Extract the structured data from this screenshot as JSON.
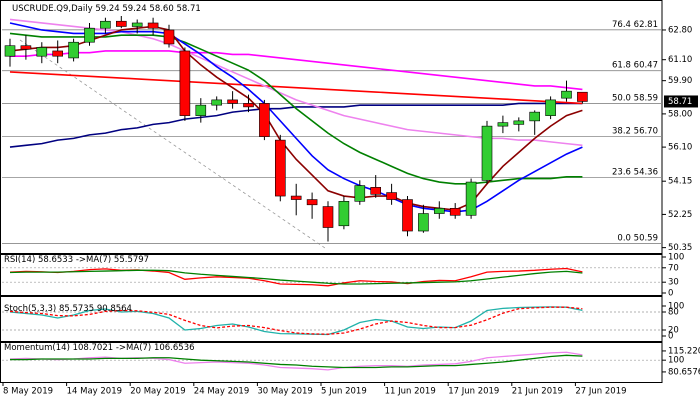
{
  "chart_data": [
    {
      "type": "candlestick",
      "title": "USCRUDE.Q9,Daily",
      "title_values": [
        "59.24",
        "59.24",
        "58.60",
        "58.71"
      ],
      "categories": [
        "8 May 2019",
        null,
        null,
        null,
        "14 May 2019",
        null,
        null,
        null,
        "20 May 2019",
        null,
        null,
        null,
        "24 May 2019",
        null,
        null,
        null,
        "30 May 2019",
        null,
        null,
        null,
        "5 Jun 2019",
        null,
        null,
        null,
        "11 Jun 2019",
        null,
        null,
        null,
        "17 Jun 2019",
        null,
        null,
        null,
        "21 Jun 2019",
        null,
        null,
        null,
        "27 Jun 2019"
      ],
      "open": [
        61.3,
        61.9,
        61.3,
        61.6,
        61.2,
        62.1,
        62.9,
        63.3,
        63.0,
        63.2,
        62.8,
        61.6,
        57.9,
        58.5,
        58.8,
        58.6,
        58.6,
        56.5,
        53.3,
        53.1,
        52.7,
        51.6,
        53.0,
        53.8,
        53.5,
        53.1,
        51.3,
        52.3,
        52.6,
        52.2,
        54.2,
        57.3,
        57.4,
        57.6,
        57.9,
        58.9,
        59.24
      ],
      "high": [
        62.3,
        62.5,
        62.1,
        62.2,
        62.3,
        63.2,
        63.5,
        63.6,
        63.4,
        63.5,
        63.1,
        61.8,
        58.9,
        59.0,
        59.3,
        59.1,
        58.8,
        56.8,
        54.0,
        53.5,
        53.0,
        53.3,
        54.2,
        54.5,
        54.0,
        53.3,
        52.8,
        53.0,
        52.9,
        54.3,
        57.6,
        57.9,
        57.8,
        58.2,
        59.0,
        59.9,
        59.24
      ],
      "low": [
        60.7,
        61.1,
        60.9,
        60.9,
        61.0,
        61.9,
        62.6,
        62.9,
        62.6,
        62.5,
        61.8,
        57.6,
        57.5,
        58.2,
        58.3,
        58.1,
        56.5,
        53.0,
        52.2,
        52.0,
        50.7,
        51.4,
        52.8,
        53.2,
        52.8,
        51.0,
        51.2,
        52.0,
        52.0,
        52.0,
        54.0,
        56.9,
        57.0,
        56.8,
        57.7,
        58.7,
        58.6
      ],
      "close": [
        61.9,
        61.7,
        61.8,
        61.3,
        62.1,
        62.9,
        63.3,
        63.0,
        63.2,
        62.9,
        62.0,
        57.9,
        58.5,
        58.8,
        58.6,
        58.4,
        56.7,
        53.3,
        53.1,
        52.8,
        51.5,
        53.0,
        53.9,
        53.4,
        53.1,
        51.3,
        52.3,
        52.6,
        52.2,
        54.1,
        57.3,
        57.5,
        57.6,
        58.1,
        58.8,
        59.3,
        58.71
      ],
      "up_color": "#32cd32",
      "down_color": "#ff0000",
      "overlays": [
        {
          "color": "#000080",
          "values": [
            56.1,
            56.2,
            56.3,
            56.5,
            56.6,
            56.8,
            56.9,
            57.1,
            57.2,
            57.4,
            57.5,
            57.7,
            57.8,
            57.9,
            58.1,
            58.2,
            58.3,
            58.3,
            58.4,
            58.4,
            58.4,
            58.4,
            58.5,
            58.5,
            58.5,
            58.5,
            58.5,
            58.5,
            58.5,
            58.5,
            58.5,
            58.5,
            58.6,
            58.6,
            58.6,
            58.6,
            58.6
          ]
        },
        {
          "color": "#ff0000",
          "values": [
            60.4,
            60.35,
            60.3,
            60.25,
            60.2,
            60.15,
            60.1,
            60.05,
            60.0,
            59.95,
            59.9,
            59.85,
            59.8,
            59.75,
            59.7,
            59.65,
            59.6,
            59.55,
            59.5,
            59.45,
            59.4,
            59.35,
            59.3,
            59.25,
            59.2,
            59.15,
            59.1,
            59.05,
            59.0,
            58.95,
            58.9,
            58.85,
            58.8,
            58.75,
            58.7,
            58.65,
            58.6
          ]
        },
        {
          "color": "#ff00ff",
          "values": [
            61.3,
            61.3,
            61.4,
            61.4,
            61.5,
            61.5,
            61.6,
            61.6,
            61.6,
            61.6,
            61.6,
            61.5,
            61.5,
            61.5,
            61.4,
            61.4,
            61.3,
            61.2,
            61.1,
            61.0,
            60.9,
            60.8,
            60.7,
            60.6,
            60.5,
            60.4,
            60.3,
            60.2,
            60.1,
            60.0,
            59.9,
            59.8,
            59.7,
            59.6,
            59.6,
            59.5,
            59.4
          ]
        },
        {
          "color": "#ee82ee",
          "values": [
            63.4,
            63.3,
            63.2,
            63.1,
            63.0,
            62.9,
            62.8,
            62.7,
            62.5,
            62.3,
            62.0,
            61.6,
            61.2,
            60.8,
            60.4,
            60.0,
            59.6,
            59.2,
            58.8,
            58.5,
            58.2,
            57.9,
            57.7,
            57.5,
            57.3,
            57.1,
            57.0,
            56.9,
            56.8,
            56.7,
            56.6,
            56.6,
            56.5,
            56.5,
            56.4,
            56.3,
            56.2
          ]
        },
        {
          "color": "#008000",
          "values": [
            62.6,
            62.5,
            62.4,
            62.4,
            62.4,
            62.4,
            62.4,
            62.5,
            62.5,
            62.5,
            62.4,
            62.1,
            61.7,
            61.3,
            60.9,
            60.5,
            59.9,
            59.1,
            58.3,
            57.6,
            56.9,
            56.3,
            55.8,
            55.4,
            55.0,
            54.6,
            54.3,
            54.1,
            54.0,
            54.0,
            54.1,
            54.2,
            54.3,
            54.3,
            54.3,
            54.4,
            54.4
          ]
        },
        {
          "color": "#0000ff",
          "values": [
            63.2,
            63.0,
            62.8,
            62.7,
            62.6,
            62.6,
            62.6,
            62.7,
            62.7,
            62.7,
            62.6,
            62.0,
            61.4,
            60.7,
            60.1,
            59.4,
            58.6,
            57.6,
            56.6,
            55.6,
            54.8,
            54.3,
            53.9,
            53.6,
            53.2,
            52.8,
            52.6,
            52.5,
            52.4,
            52.5,
            53.0,
            53.6,
            54.2,
            54.7,
            55.2,
            55.7,
            56.1
          ]
        },
        {
          "color": "#8b0000",
          "values": [
            61.6,
            61.7,
            61.8,
            61.8,
            61.9,
            62.2,
            62.5,
            62.8,
            62.9,
            63.0,
            62.8,
            61.6,
            60.8,
            60.1,
            59.5,
            58.9,
            58.0,
            56.5,
            55.4,
            54.5,
            53.6,
            53.3,
            53.2,
            53.3,
            53.3,
            52.9,
            52.7,
            52.6,
            52.5,
            52.9,
            54.0,
            55.0,
            55.8,
            56.6,
            57.3,
            57.9,
            58.2
          ]
        }
      ],
      "fib_levels": [
        {
          "ratio": "76.4",
          "value": 62.81,
          "value_label": "62.81"
        },
        {
          "ratio": "61.8",
          "value": 60.47,
          "value_label": "60.47"
        },
        {
          "ratio": "50.0",
          "value": 58.59,
          "value_label": "58.59"
        },
        {
          "ratio": "38.2",
          "value": 56.7,
          "value_label": "56.70"
        },
        {
          "ratio": "23.6",
          "value": 54.36,
          "value_label": "54.36"
        },
        {
          "ratio": "0.0",
          "value": 50.59,
          "value_label": "50.59"
        }
      ],
      "ylim": [
        50.1,
        64.4
      ],
      "yticks": [
        {
          "value": 62.8,
          "label": "62.80"
        },
        {
          "value": 61.1,
          "label": "61.10"
        },
        {
          "value": 59.9,
          "label": "59.90"
        },
        {
          "value": 58,
          "label": "58.00"
        },
        {
          "value": 56.1,
          "label": "56.10"
        },
        54.15,
        52.25,
        50.35
      ]
    },
    {
      "type": "line",
      "title": "RSI(14)",
      "ylim": [
        0,
        100
      ],
      "yticks": [
        100,
        70,
        30,
        0
      ],
      "levels": [
        70,
        30
      ],
      "series": [
        {
          "color": "#ff0000",
          "values": [
            58,
            60,
            59,
            57,
            60,
            65,
            67,
            63,
            64,
            61,
            57,
            38,
            42,
            45,
            43,
            41,
            34,
            25,
            24,
            23,
            20,
            28,
            34,
            32,
            31,
            26,
            32,
            35,
            34,
            45,
            58,
            60,
            61,
            63,
            66,
            68,
            58.6533
          ]
        },
        {
          "name": "->MA(7)",
          "color": "#008000",
          "values": [
            57,
            58,
            58,
            58,
            59,
            60,
            61,
            62,
            63,
            63,
            62,
            56,
            52,
            49,
            46,
            43,
            40,
            36,
            33,
            30,
            27,
            25,
            25,
            26,
            27,
            28,
            29,
            30,
            31,
            34,
            39,
            44,
            49,
            54,
            58,
            60,
            55.5797
          ]
        }
      ]
    },
    {
      "type": "line",
      "title": "Stoch(5,3,3)",
      "ylim": [
        0,
        100
      ],
      "yticks": [
        100,
        80,
        20,
        0
      ],
      "levels": [
        80,
        20
      ],
      "series": [
        {
          "color": "#20b2aa",
          "values": [
            80,
            75,
            70,
            60,
            70,
            85,
            90,
            80,
            82,
            75,
            60,
            20,
            25,
            35,
            40,
            30,
            15,
            8,
            7,
            6,
            5,
            20,
            45,
            55,
            50,
            30,
            25,
            30,
            28,
            50,
            85,
            92,
            95,
            96,
            97,
            96,
            85.5735
          ]
        },
        {
          "color": "#ff0000",
          "dashed": true,
          "values": [
            82,
            78,
            75,
            68,
            67,
            72,
            82,
            85,
            84,
            79,
            72,
            52,
            35,
            27,
            33,
            35,
            28,
            18,
            10,
            7,
            6,
            10,
            23,
            40,
            50,
            45,
            35,
            28,
            28,
            36,
            54,
            76,
            91,
            94,
            96,
            96,
            90.8564
          ]
        }
      ]
    },
    {
      "type": "line",
      "title": "Momentum(14)",
      "ylim": [
        69,
        125
      ],
      "yticks": [
        115.2206,
        100,
        80.6576
      ],
      "levels": [
        100
      ],
      "series": [
        {
          "color": "#ee82ee",
          "values": [
            102,
            103,
            102,
            101,
            102,
            104,
            105,
            103,
            104,
            103,
            101,
            95,
            96,
            97,
            96,
            95,
            92,
            88,
            87,
            86,
            84,
            88,
            90,
            91,
            91,
            90,
            92,
            93,
            94,
            98,
            104,
            106,
            108,
            110,
            112,
            113,
            108.7021
          ]
        },
        {
          "name": "->MA(7)",
          "color": "#008000",
          "values": [
            101,
            101,
            102,
            102,
            102,
            102,
            103,
            103,
            103,
            104,
            104,
            102,
            100,
            99,
            98,
            97,
            95,
            93,
            92,
            90,
            89,
            88,
            88,
            88,
            89,
            89,
            90,
            91,
            91,
            93,
            95,
            97,
            100,
            103,
            106,
            108,
            106.6536
          ]
        }
      ]
    }
  ]
}
